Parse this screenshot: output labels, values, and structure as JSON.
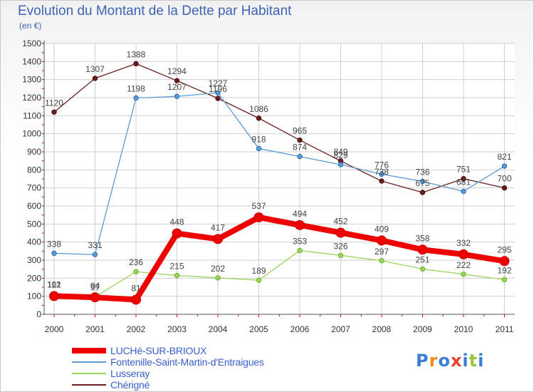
{
  "header": {
    "title": "Evolution du Montant de la Dette par Habitant",
    "subtitle": "(en €)"
  },
  "logo": {
    "text": "Proxiti",
    "colors": [
      "#3a7fd5",
      "#f08a1c",
      "#3a7fd5",
      "#e8402a",
      "#3a7fd5",
      "#9ac83c",
      "#3a7fd5"
    ]
  },
  "chart_data": {
    "type": "line",
    "title": "Evolution du Montant de la Dette par Habitant",
    "ylabel": "(en €)",
    "xlabel": "",
    "x": [
      "2000",
      "2001",
      "2002",
      "2003",
      "2004",
      "2005",
      "2006",
      "2007",
      "2008",
      "2009",
      "2010",
      "2011"
    ],
    "ylim": [
      0,
      1500
    ],
    "yticks": [
      0,
      100,
      200,
      300,
      400,
      500,
      600,
      700,
      800,
      900,
      1000,
      1100,
      1200,
      1300,
      1400,
      1500
    ],
    "grid": true,
    "legend_position": "bottom-left",
    "series": [
      {
        "name": "LUCHé-SUR-BRIOUX",
        "color": "#ee0000",
        "values": [
          101,
          94,
          81,
          448,
          417,
          537,
          494,
          452,
          409,
          358,
          332,
          295
        ]
      },
      {
        "name": "Fontenille-Saint-Martin-d'Entraigues",
        "color": "#5b9bd5",
        "values": [
          338,
          331,
          1198,
          1207,
          1227,
          918,
          874,
          829,
          776,
          736,
          681,
          821
        ]
      },
      {
        "name": "Lusseray",
        "color": "#99d55a",
        "values": [
          112,
          97,
          236,
          215,
          202,
          189,
          353,
          326,
          297,
          251,
          222,
          192
        ]
      },
      {
        "name": "Chérigné",
        "color": "#6b1e1e",
        "values": [
          1120,
          1307,
          1388,
          1294,
          1196,
          1086,
          965,
          849,
          738,
          675,
          751,
          700
        ]
      }
    ]
  }
}
